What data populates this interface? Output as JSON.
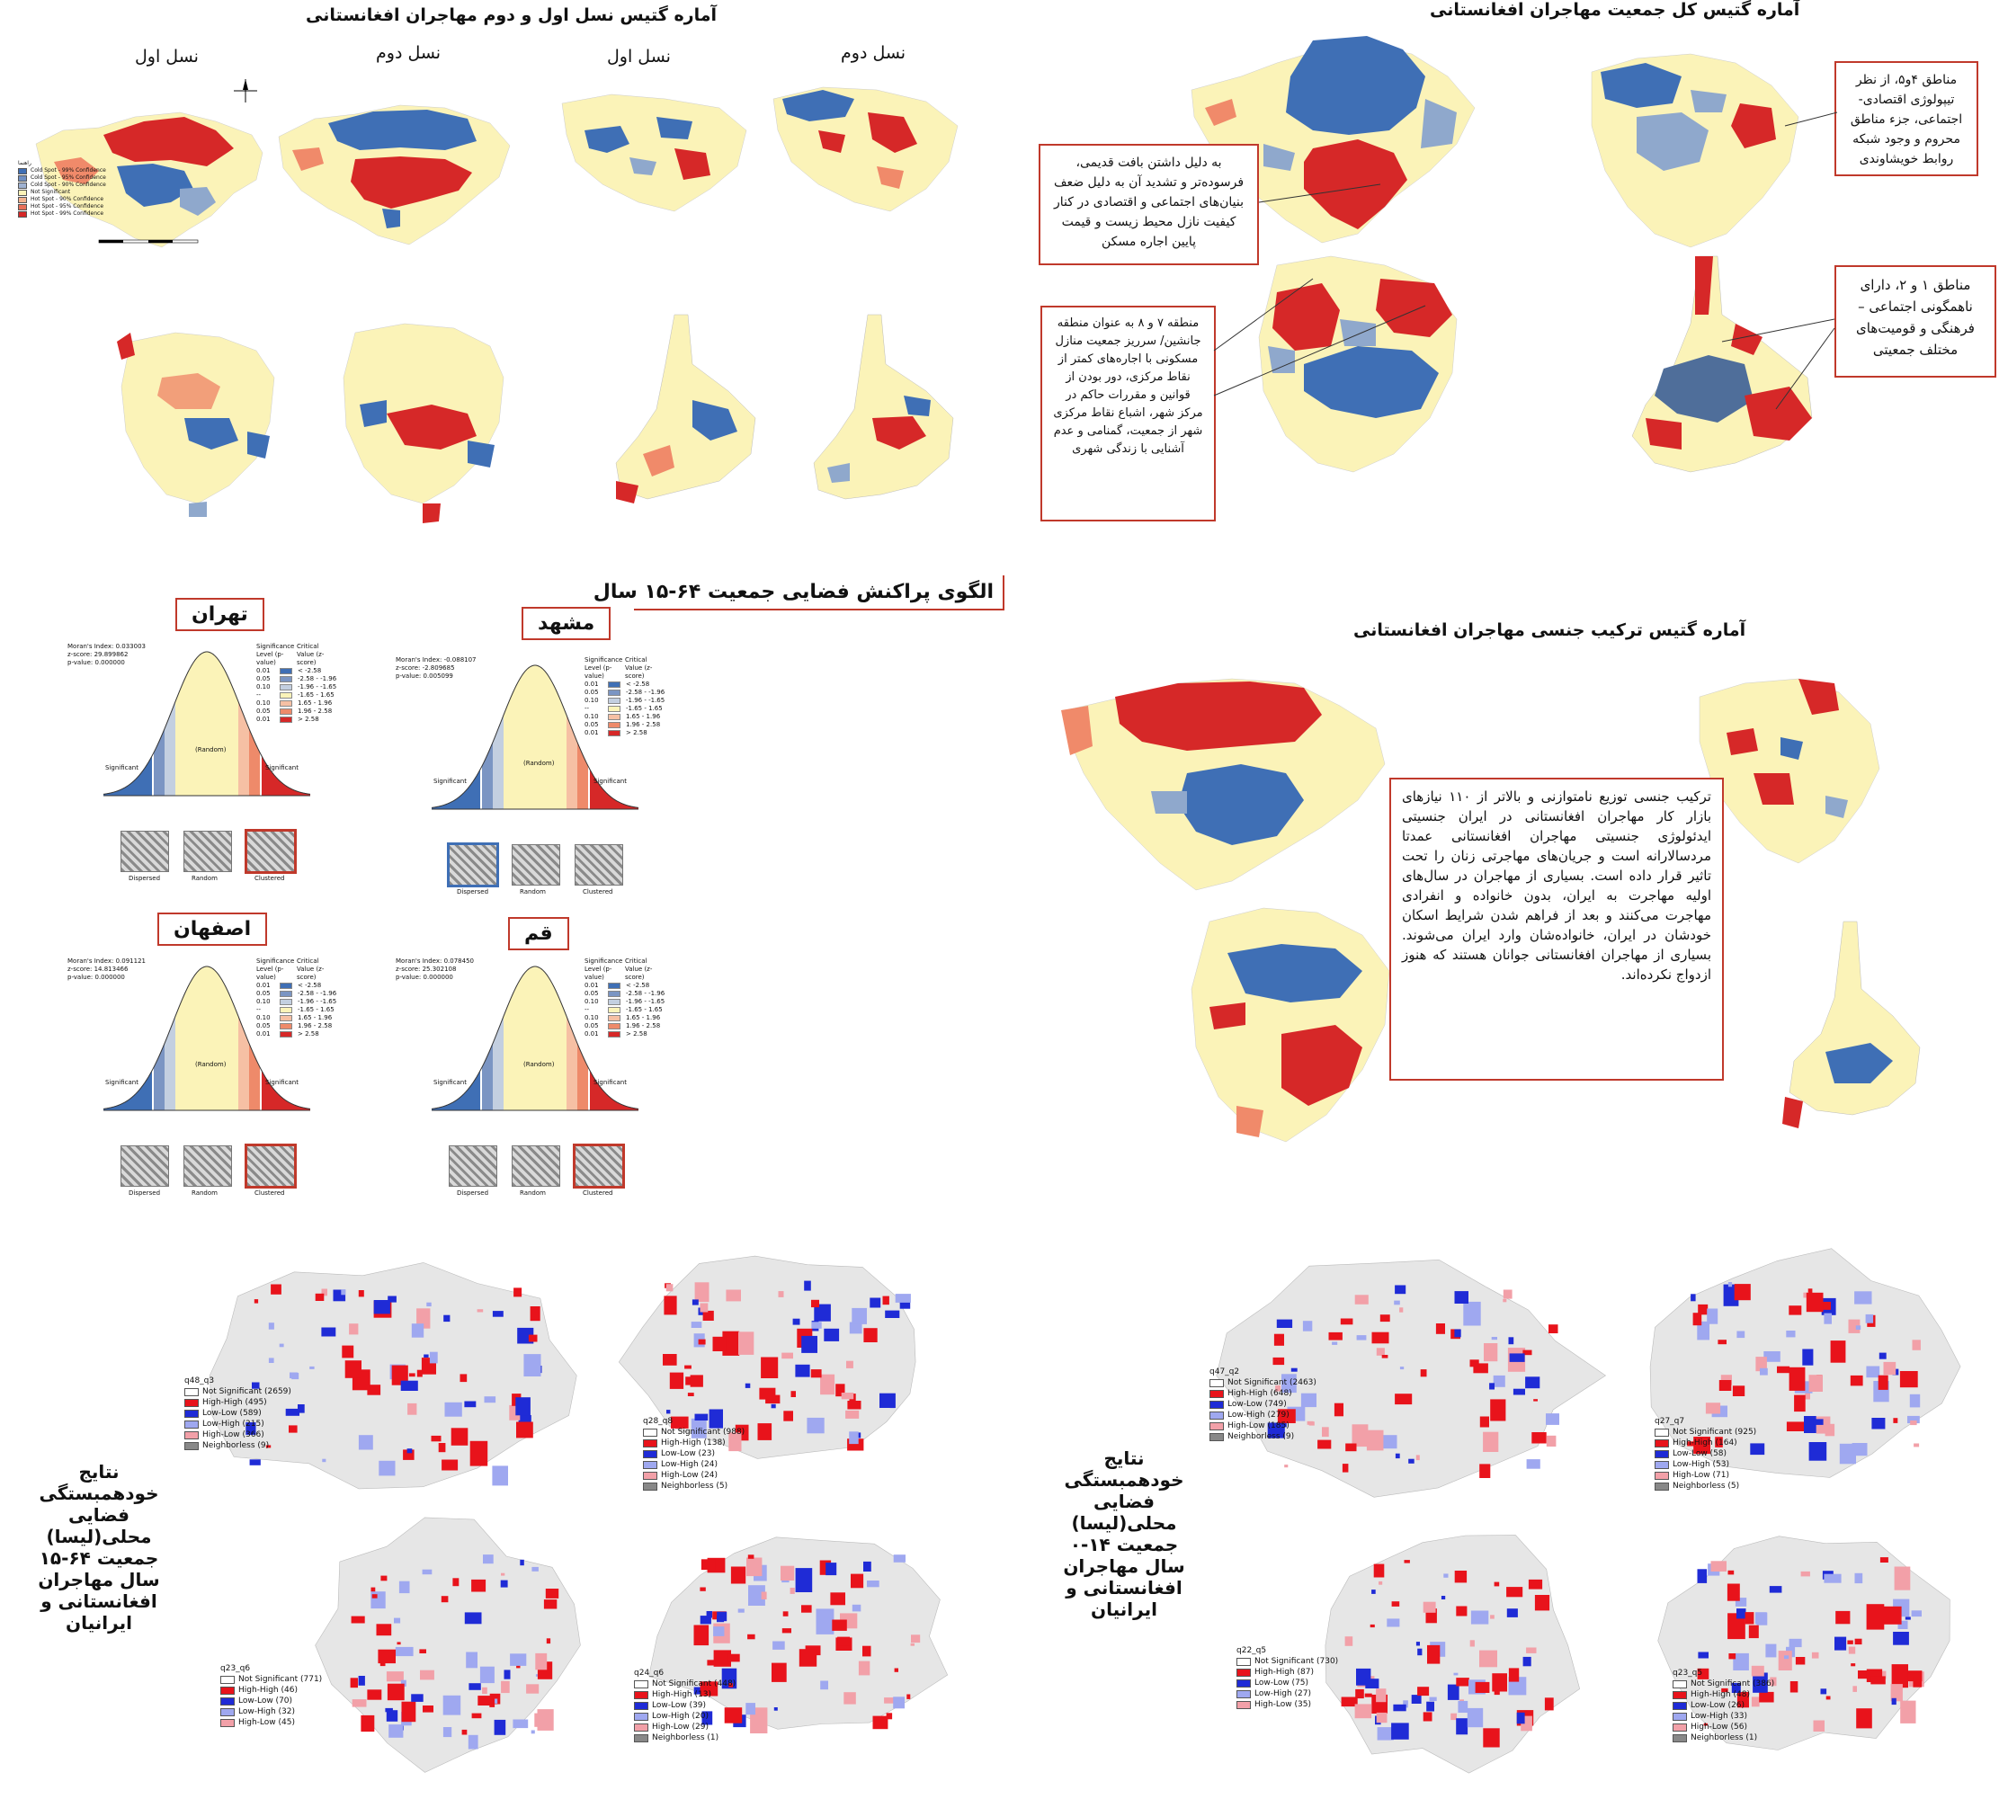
{
  "colors": {
    "hot": "#d62828",
    "hot_light": "#f08a6a",
    "cold": "#3f6fb5",
    "cold_light": "#8fa8cc",
    "neutral": "#fbf3b8",
    "lisa_hh": "#e8131b",
    "lisa_ll": "#1f2bd6",
    "lisa_lh": "#9fa8f0",
    "lisa_hl": "#f2a0a8",
    "lisa_ns": "#e6e6e6",
    "accent_border": "#c0392b"
  },
  "gen_section": {
    "title": "آماره گتیس نسل اول و دوم مهاجران افغانستانی",
    "labels": [
      "نسل اول",
      "نسل دوم",
      "نسل اول",
      "نسل دوم"
    ],
    "legend_title": "راهنما",
    "legend_items": [
      "Cold Spot - 99% Confidence",
      "Cold Spot - 95% Confidence",
      "Cold Spot - 90% Confidence",
      "Not Significant",
      "Hot Spot - 90% Confidence",
      "Hot Spot - 95% Confidence",
      "Hot Spot - 99% Confidence"
    ]
  },
  "total_section": {
    "title": "آماره گتیس کل جمعیت مهاجران افغانستانی",
    "note_1": "به دلیل داشتن بافت قدیمی، فرسوده‌تر و تشدید آن به دلیل ضعف بنیان‌های اجتماعی و اقتصادی در کنار کیفیت نازل محیط زیست و قیمت پایین اجاره مسکن",
    "note_2": "مناطق ۴و۵، از نظر تیپولوژی اقتصادی-اجتماعی، جزء مناطق محروم و وجود شبکه روابط خویشاوندی",
    "note_3": "منطقه ۷ و ۸ به عنوان منطقه جانشین/ سرریز جمعیت منازل مسکونی با اجاره‌های کمتر از نقاط مرکزی، دور بودن از قوانین و مقررات حاکم در مرکز شهر، اشباع نقاط مرکزی شهر از جمعیت، گمنامی و عدم آشنایی با زندگی شهری",
    "note_4": "مناطق ۱ و ۲، دارای ناهمگونی اجتماعی – فرهنگی و قومیت‌های مختلف جمعیتی"
  },
  "moran_section": {
    "title": "الگوی پراکنش فضایی جمعیت ۶۴-۱۵ سال",
    "cities": [
      {
        "name": "تهران",
        "index": "Moran's Index: 0.033003",
        "z": "z-score: 29.899862",
        "p": "p-value: 0.000000"
      },
      {
        "name": "مشهد",
        "index": "Moran's Index: -0.088107",
        "z": "z-score: -2.809685",
        "p": "p-value: 0.005099"
      },
      {
        "name": "اصفهان",
        "index": "Moran's Index: 0.091121",
        "z": "z-score: 14.813466",
        "p": "p-value: 0.000000"
      },
      {
        "name": "قم",
        "index": "Moran's Index: 0.078450",
        "z": "z-score: 25.302108",
        "p": "p-value: 0.000000"
      }
    ],
    "curve_labels": {
      "random": "(Random)",
      "significant": "Significant",
      "dispersed": "Dispersed",
      "random_box": "Random",
      "clustered": "Clustered"
    },
    "legend_head_1": "Significance Level (p-value)",
    "legend_head_2": "Critical Value (z-score)",
    "levels": [
      "0.01",
      "0.05",
      "0.10",
      "--",
      "0.10",
      "0.05",
      "0.01"
    ],
    "criticals": [
      "< -2.58",
      "-2.58 - -1.96",
      "-1.96 - -1.65",
      "-1.65 - 1.65",
      "1.65 - 1.96",
      "1.96 - 2.58",
      "> 2.58"
    ]
  },
  "sex_section": {
    "title": "آماره گتیس ترکیب جنسی مهاجران افغانستانی",
    "note": "ترکیب جنسی توزیع نامتوازنی و بالاتر از ۱۱۰ نیازهای بازار کار مهاجران افغانستانی در ایران جنسیتی ایدئولوژی جنسیتی مهاجران افغانستانی عمدتا مردسالارانه است و جریان‌های مهاجرتی زنان را تحت تاثیر قرار داده است. بسیاری از مهاجران در سال‌های اولیه مهاجرت به ایران، بدون خانواده و انفرادی مهاجرت می‌کنند و بعد از فراهم شدن شرایط اسکان خودشان در ایران، خانواده‌شان وارد ایران می‌شوند. بسیاری از مهاجران افغانستانی جوانان هستند که هنوز ازدواج نکرده‌اند."
  },
  "lisa_left": {
    "title": "نتایج خودهمبستگی فضایی محلی(لیسا) جمعیت ۶۴-۱۵ سال مهاجران افغانستانی و ایرانیان",
    "maps": [
      {
        "id": "q48_q3",
        "items": [
          "Not Significant (2659)",
          "High-High (495)",
          "Low-Low (589)",
          "Low-High (215)",
          "High-Low (366)",
          "Neighborless (9)"
        ]
      },
      {
        "id": "q28_q8",
        "items": [
          "Not Significant (988)",
          "High-High (138)",
          "Low-Low (23)",
          "Low-High (24)",
          "High-Low (24)",
          "Neighborless (5)"
        ]
      },
      {
        "id": "q23_q6",
        "items": [
          "Not Significant (771)",
          "High-High (46)",
          "Low-Low (70)",
          "Low-High (32)",
          "High-Low (45)"
        ]
      },
      {
        "id": "q24_q6",
        "items": [
          "Not Significant (448)",
          "High-High (13)",
          "Low-Low (39)",
          "Low-High (20)",
          "High-Low (29)",
          "Neighborless (1)"
        ]
      }
    ]
  },
  "lisa_right": {
    "title": "نتایج خودهمبستگی فضایی محلی(لیسا) جمعیت ۱۴-۰ سال مهاجران افغانستانی و ایرانیان",
    "maps": [
      {
        "id": "q47_q2",
        "items": [
          "Not Significant (2463)",
          "High-High (648)",
          "Low-Low (749)",
          "Low-High (279)",
          "High-Low (185)",
          "Neighborless (9)"
        ]
      },
      {
        "id": "q27_q7",
        "items": [
          "Not Significant (925)",
          "High-High (164)",
          "Low-Low (58)",
          "Low-High (53)",
          "High-Low (71)",
          "Neighborless (5)"
        ]
      },
      {
        "id": "q22_q5",
        "items": [
          "Not Significant (730)",
          "High-High (87)",
          "Low-Low (75)",
          "Low-High (27)",
          "High-Low (35)"
        ]
      },
      {
        "id": "q23_q5",
        "items": [
          "Not Significant (386)",
          "High-High (48)",
          "Low-Low (26)",
          "Low-High (33)",
          "High-Low (56)",
          "Neighborless (1)"
        ]
      }
    ]
  }
}
